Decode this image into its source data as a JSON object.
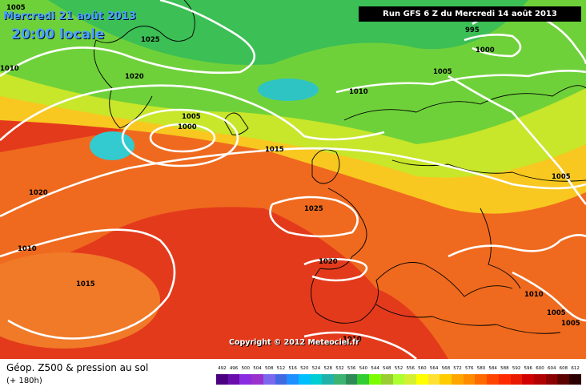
{
  "header": {
    "date": "Mercredi 21 août 2013",
    "time": "20:00 locale",
    "run": "Run GFS 6 Z du Mercredi 14 août 2013"
  },
  "copyright": "Copyright © 2012 Meteociel.fr",
  "footer": {
    "title": "Géop. Z500 & pression au sol",
    "subtitle": "(+ 180h)"
  },
  "legend": {
    "values": [
      "492",
      "496",
      "500",
      "504",
      "508",
      "512",
      "516",
      "520",
      "524",
      "528",
      "532",
      "536",
      "540",
      "544",
      "548",
      "552",
      "556",
      "560",
      "564",
      "568",
      "572",
      "576",
      "580",
      "584",
      "588",
      "592",
      "596",
      "600",
      "604",
      "608",
      "612"
    ],
    "colors": [
      "#4b0082",
      "#6a0dad",
      "#8a2be2",
      "#9932cc",
      "#7b68ee",
      "#4169e1",
      "#1e90ff",
      "#00bfff",
      "#00ced1",
      "#20b2aa",
      "#3cb371",
      "#2e8b57",
      "#32cd32",
      "#7cfc00",
      "#9acd32",
      "#adff2f",
      "#d4f032",
      "#ffff00",
      "#ffe135",
      "#ffcc00",
      "#ffa500",
      "#ff8c00",
      "#ff6a00",
      "#ff4500",
      "#ff2a00",
      "#e81a00",
      "#d00000",
      "#b00000",
      "#8b0000",
      "#5c0000",
      "#2a0000"
    ]
  },
  "isobars": [
    "1005",
    "1025",
    "1020",
    "1010",
    "995",
    "1000",
    "1005",
    "1010",
    "1005",
    "1000",
    "1015",
    "1020",
    "1010",
    "1025",
    "1015",
    "1020",
    "1005",
    "1010",
    "1005",
    "1005",
    "1010"
  ],
  "colors": {
    "map_background": "#e43a1c",
    "header_text": "#4aa3ff",
    "contour": "#ffffff",
    "coast": "#000000"
  }
}
